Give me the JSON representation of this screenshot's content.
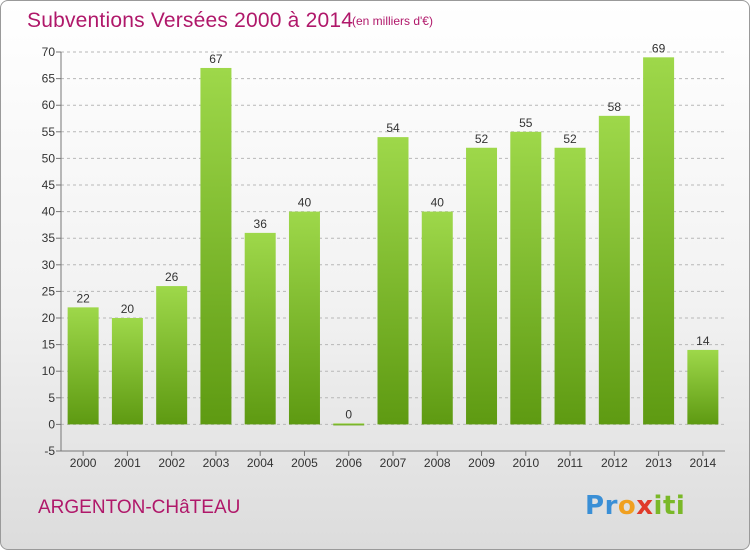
{
  "header": {
    "title": "Subventions Versées 2000 à 2014",
    "subtitle": "(en milliers d'€)"
  },
  "footer": {
    "commune": "ARGENTON-CHâTEAU",
    "logo_letters": [
      "P",
      "r",
      "o",
      "x",
      "i",
      "t",
      "i"
    ]
  },
  "colors": {
    "title": "#b0186a",
    "bar_top": "#9ed84a",
    "bar_bottom": "#5e9a12",
    "logo": [
      "#3a8fd6",
      "#3a8fd6",
      "#f0a020",
      "#e03a2a",
      "#7ab828",
      "#7ab828",
      "#7ab828"
    ]
  },
  "chart_data": {
    "type": "bar",
    "categories": [
      "2000",
      "2001",
      "2002",
      "2003",
      "2004",
      "2005",
      "2006",
      "2007",
      "2008",
      "2009",
      "2010",
      "2011",
      "2012",
      "2013",
      "2014"
    ],
    "values": [
      22,
      20,
      26,
      67,
      36,
      40,
      0,
      54,
      40,
      52,
      55,
      52,
      58,
      69,
      14
    ],
    "value_labels": [
      "22",
      "20",
      "26",
      "67",
      "36",
      "40",
      "0",
      "54",
      "40",
      "52",
      "55",
      "52",
      "58",
      "69",
      "14"
    ],
    "ylim": [
      -5,
      70
    ],
    "yticks": [
      -5,
      0,
      5,
      10,
      15,
      20,
      25,
      30,
      35,
      40,
      45,
      50,
      55,
      60,
      65,
      70
    ],
    "grid": true
  }
}
